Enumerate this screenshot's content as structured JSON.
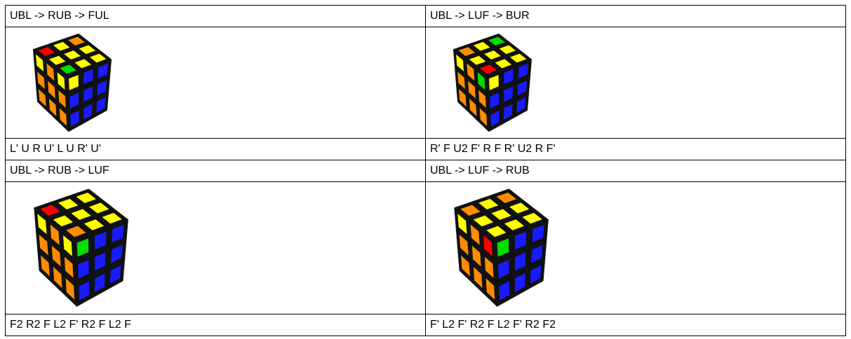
{
  "table": {
    "rows": [
      [
        "UBL -> RUB -> FUL",
        "UBL -> LUF -> BUR"
      ],
      [
        "L' U R U' L U R' U'",
        "R' F U2 F' R F R' U2 R F'"
      ],
      [
        "UBL -> RUB -> LUF",
        "UBL -> LUF -> RUB"
      ],
      [
        "F2 R2 F L2 F' R2 F L2 F",
        "F' L2 F' R2 F L2 F' R2 F2"
      ]
    ]
  }
}
